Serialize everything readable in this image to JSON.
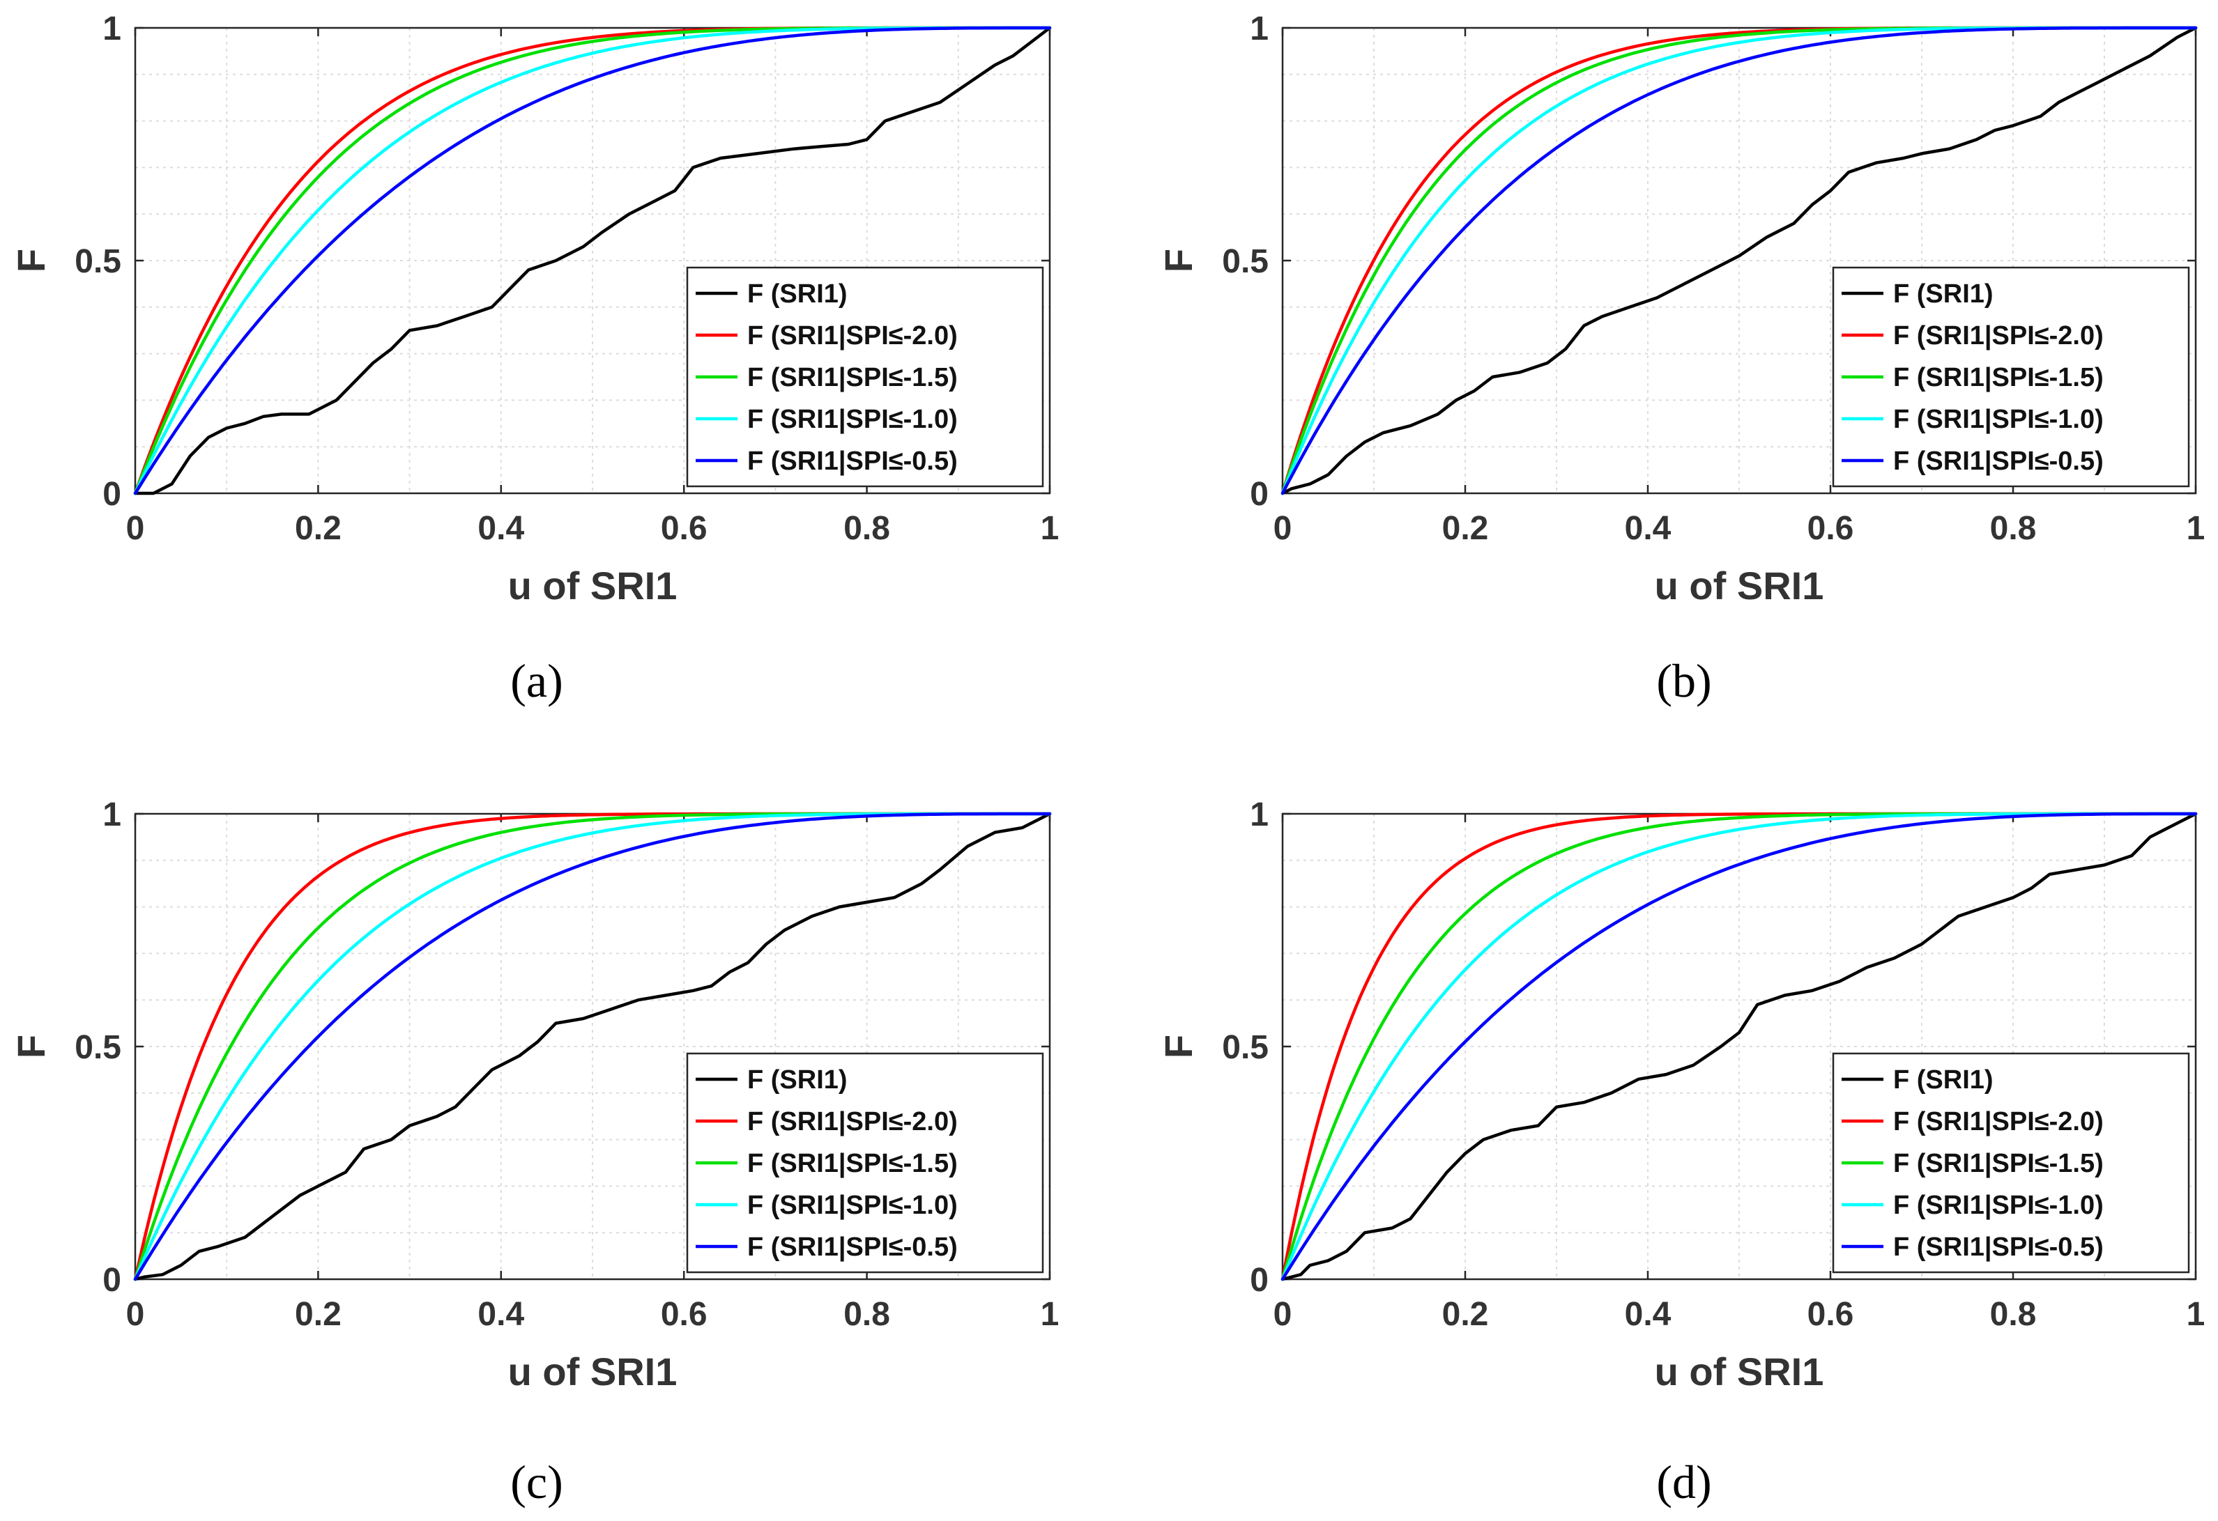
{
  "figure": {
    "panel_labels": [
      "(a)",
      "(b)",
      "(c)",
      "(d)"
    ]
  },
  "chart_data": [
    {
      "id": "a",
      "type": "line",
      "panel_label": "(a)",
      "xlabel": "u of SRI1",
      "ylabel": "F",
      "xlim": [
        0,
        1
      ],
      "ylim": [
        0,
        1
      ],
      "xticks": [
        "0",
        "0.2",
        "0.4",
        "0.6",
        "0.8",
        "1"
      ],
      "yticks": [
        "0",
        "0.5",
        "1"
      ],
      "grid": true,
      "legend_position": "bottom-right",
      "series": [
        {
          "name": "F (SRI1)",
          "color": "#000000",
          "points": [
            [
              0,
              0
            ],
            [
              0.02,
              0
            ],
            [
              0.04,
              0.02
            ],
            [
              0.06,
              0.08
            ],
            [
              0.08,
              0.12
            ],
            [
              0.1,
              0.14
            ],
            [
              0.12,
              0.15
            ],
            [
              0.14,
              0.165
            ],
            [
              0.16,
              0.17
            ],
            [
              0.19,
              0.17
            ],
            [
              0.22,
              0.2
            ],
            [
              0.24,
              0.24
            ],
            [
              0.26,
              0.28
            ],
            [
              0.28,
              0.31
            ],
            [
              0.3,
              0.35
            ],
            [
              0.33,
              0.36
            ],
            [
              0.36,
              0.38
            ],
            [
              0.39,
              0.4
            ],
            [
              0.41,
              0.44
            ],
            [
              0.43,
              0.48
            ],
            [
              0.46,
              0.5
            ],
            [
              0.49,
              0.53
            ],
            [
              0.51,
              0.56
            ],
            [
              0.54,
              0.6
            ],
            [
              0.57,
              0.63
            ],
            [
              0.59,
              0.65
            ],
            [
              0.61,
              0.7
            ],
            [
              0.64,
              0.72
            ],
            [
              0.68,
              0.73
            ],
            [
              0.72,
              0.74
            ],
            [
              0.75,
              0.745
            ],
            [
              0.78,
              0.75
            ],
            [
              0.8,
              0.76
            ],
            [
              0.82,
              0.8
            ],
            [
              0.85,
              0.82
            ],
            [
              0.88,
              0.84
            ],
            [
              0.91,
              0.88
            ],
            [
              0.94,
              0.92
            ],
            [
              0.96,
              0.94
            ],
            [
              0.98,
              0.97
            ],
            [
              1,
              1
            ]
          ]
        },
        {
          "name": "F (SRI1|SPI≤-2.0)",
          "color": "#ff0000",
          "shape_k": 5.6
        },
        {
          "name": "F (SRI1|SPI≤-1.5)",
          "color": "#00e000",
          "shape_k": 5.1
        },
        {
          "name": "F (SRI1|SPI≤-1.0)",
          "color": "#00ffff",
          "shape_k": 4.2
        },
        {
          "name": "F (SRI1|SPI≤-0.5)",
          "color": "#0000ff",
          "shape_k": 3.2
        }
      ]
    },
    {
      "id": "b",
      "type": "line",
      "panel_label": "(b)",
      "xlabel": "u of SRI1",
      "ylabel": "F",
      "xlim": [
        0,
        1
      ],
      "ylim": [
        0,
        1
      ],
      "xticks": [
        "0",
        "0.2",
        "0.4",
        "0.6",
        "0.8",
        "1"
      ],
      "yticks": [
        "0",
        "0.5",
        "1"
      ],
      "grid": true,
      "legend_position": "bottom-right",
      "series": [
        {
          "name": "F (SRI1)",
          "color": "#000000",
          "points": [
            [
              0,
              0
            ],
            [
              0.01,
              0.01
            ],
            [
              0.03,
              0.02
            ],
            [
              0.05,
              0.04
            ],
            [
              0.07,
              0.08
            ],
            [
              0.09,
              0.11
            ],
            [
              0.11,
              0.13
            ],
            [
              0.14,
              0.145
            ],
            [
              0.17,
              0.17
            ],
            [
              0.19,
              0.2
            ],
            [
              0.21,
              0.22
            ],
            [
              0.23,
              0.25
            ],
            [
              0.26,
              0.26
            ],
            [
              0.29,
              0.28
            ],
            [
              0.31,
              0.31
            ],
            [
              0.33,
              0.36
            ],
            [
              0.35,
              0.38
            ],
            [
              0.38,
              0.4
            ],
            [
              0.41,
              0.42
            ],
            [
              0.44,
              0.45
            ],
            [
              0.47,
              0.48
            ],
            [
              0.5,
              0.51
            ],
            [
              0.53,
              0.55
            ],
            [
              0.56,
              0.58
            ],
            [
              0.58,
              0.62
            ],
            [
              0.6,
              0.65
            ],
            [
              0.62,
              0.69
            ],
            [
              0.65,
              0.71
            ],
            [
              0.68,
              0.72
            ],
            [
              0.7,
              0.73
            ],
            [
              0.73,
              0.74
            ],
            [
              0.76,
              0.76
            ],
            [
              0.78,
              0.78
            ],
            [
              0.8,
              0.79
            ],
            [
              0.83,
              0.81
            ],
            [
              0.85,
              0.84
            ],
            [
              0.87,
              0.86
            ],
            [
              0.89,
              0.88
            ],
            [
              0.92,
              0.91
            ],
            [
              0.95,
              0.94
            ],
            [
              0.98,
              0.98
            ],
            [
              1,
              1
            ]
          ]
        },
        {
          "name": "F (SRI1|SPI≤-2.0)",
          "color": "#ff0000",
          "shape_k": 6.6
        },
        {
          "name": "F (SRI1|SPI≤-1.5)",
          "color": "#00e000",
          "shape_k": 6.0
        },
        {
          "name": "F (SRI1|SPI≤-1.0)",
          "color": "#00ffff",
          "shape_k": 5.0
        },
        {
          "name": "F (SRI1|SPI≤-0.5)",
          "color": "#0000ff",
          "shape_k": 3.8
        }
      ]
    },
    {
      "id": "c",
      "type": "line",
      "panel_label": "(c)",
      "xlabel": "u of SRI1",
      "ylabel": "F",
      "xlim": [
        0,
        1
      ],
      "ylim": [
        0,
        1
      ],
      "xticks": [
        "0",
        "0.2",
        "0.4",
        "0.6",
        "0.8",
        "1"
      ],
      "yticks": [
        "0",
        "0.5",
        "1"
      ],
      "grid": true,
      "legend_position": "bottom-right",
      "series": [
        {
          "name": "F (SRI1)",
          "color": "#000000",
          "points": [
            [
              0,
              0
            ],
            [
              0.01,
              0.005
            ],
            [
              0.03,
              0.01
            ],
            [
              0.05,
              0.03
            ],
            [
              0.07,
              0.06
            ],
            [
              0.09,
              0.07
            ],
            [
              0.12,
              0.09
            ],
            [
              0.14,
              0.12
            ],
            [
              0.16,
              0.15
            ],
            [
              0.18,
              0.18
            ],
            [
              0.2,
              0.2
            ],
            [
              0.23,
              0.23
            ],
            [
              0.25,
              0.28
            ],
            [
              0.28,
              0.3
            ],
            [
              0.3,
              0.33
            ],
            [
              0.33,
              0.35
            ],
            [
              0.35,
              0.37
            ],
            [
              0.37,
              0.41
            ],
            [
              0.39,
              0.45
            ],
            [
              0.42,
              0.48
            ],
            [
              0.44,
              0.51
            ],
            [
              0.46,
              0.55
            ],
            [
              0.49,
              0.56
            ],
            [
              0.52,
              0.58
            ],
            [
              0.55,
              0.6
            ],
            [
              0.58,
              0.61
            ],
            [
              0.61,
              0.62
            ],
            [
              0.63,
              0.63
            ],
            [
              0.65,
              0.66
            ],
            [
              0.67,
              0.68
            ],
            [
              0.69,
              0.72
            ],
            [
              0.71,
              0.75
            ],
            [
              0.74,
              0.78
            ],
            [
              0.77,
              0.8
            ],
            [
              0.8,
              0.81
            ],
            [
              0.83,
              0.82
            ],
            [
              0.86,
              0.85
            ],
            [
              0.88,
              0.88
            ],
            [
              0.91,
              0.93
            ],
            [
              0.94,
              0.96
            ],
            [
              0.97,
              0.97
            ],
            [
              1,
              1
            ]
          ]
        },
        {
          "name": "F (SRI1|SPI≤-2.0)",
          "color": "#ff0000",
          "shape_k": 9.0
        },
        {
          "name": "F (SRI1|SPI≤-1.5)",
          "color": "#00e000",
          "shape_k": 6.3
        },
        {
          "name": "F (SRI1|SPI≤-1.0)",
          "color": "#00ffff",
          "shape_k": 4.6
        },
        {
          "name": "F (SRI1|SPI≤-0.5)",
          "color": "#0000ff",
          "shape_k": 3.3
        }
      ]
    },
    {
      "id": "d",
      "type": "line",
      "panel_label": "(d)",
      "xlabel": "u of SRI1",
      "ylabel": "F",
      "xlim": [
        0,
        1
      ],
      "ylim": [
        0,
        1
      ],
      "xticks": [
        "0",
        "0.2",
        "0.4",
        "0.6",
        "0.8",
        "1"
      ],
      "yticks": [
        "0",
        "0.5",
        "1"
      ],
      "grid": true,
      "legend_position": "bottom-right",
      "series": [
        {
          "name": "F (SRI1)",
          "color": "#000000",
          "points": [
            [
              0,
              0
            ],
            [
              0.02,
              0.01
            ],
            [
              0.03,
              0.03
            ],
            [
              0.05,
              0.04
            ],
            [
              0.07,
              0.06
            ],
            [
              0.09,
              0.1
            ],
            [
              0.12,
              0.11
            ],
            [
              0.14,
              0.13
            ],
            [
              0.16,
              0.18
            ],
            [
              0.18,
              0.23
            ],
            [
              0.2,
              0.27
            ],
            [
              0.22,
              0.3
            ],
            [
              0.25,
              0.32
            ],
            [
              0.28,
              0.33
            ],
            [
              0.3,
              0.37
            ],
            [
              0.33,
              0.38
            ],
            [
              0.36,
              0.4
            ],
            [
              0.39,
              0.43
            ],
            [
              0.42,
              0.44
            ],
            [
              0.45,
              0.46
            ],
            [
              0.48,
              0.5
            ],
            [
              0.5,
              0.53
            ],
            [
              0.52,
              0.59
            ],
            [
              0.55,
              0.61
            ],
            [
              0.58,
              0.62
            ],
            [
              0.61,
              0.64
            ],
            [
              0.64,
              0.67
            ],
            [
              0.67,
              0.69
            ],
            [
              0.7,
              0.72
            ],
            [
              0.72,
              0.75
            ],
            [
              0.74,
              0.78
            ],
            [
              0.77,
              0.8
            ],
            [
              0.8,
              0.82
            ],
            [
              0.82,
              0.84
            ],
            [
              0.84,
              0.87
            ],
            [
              0.87,
              0.88
            ],
            [
              0.9,
              0.89
            ],
            [
              0.93,
              0.91
            ],
            [
              0.95,
              0.95
            ],
            [
              0.97,
              0.97
            ],
            [
              1,
              1
            ]
          ]
        },
        {
          "name": "F (SRI1|SPI≤-2.0)",
          "color": "#ff0000",
          "shape_k": 10.5
        },
        {
          "name": "F (SRI1|SPI≤-1.5)",
          "color": "#00e000",
          "shape_k": 6.9
        },
        {
          "name": "F (SRI1|SPI≤-1.0)",
          "color": "#00ffff",
          "shape_k": 4.9
        },
        {
          "name": "F (SRI1|SPI≤-0.5)",
          "color": "#0000ff",
          "shape_k": 3.2
        }
      ]
    }
  ]
}
